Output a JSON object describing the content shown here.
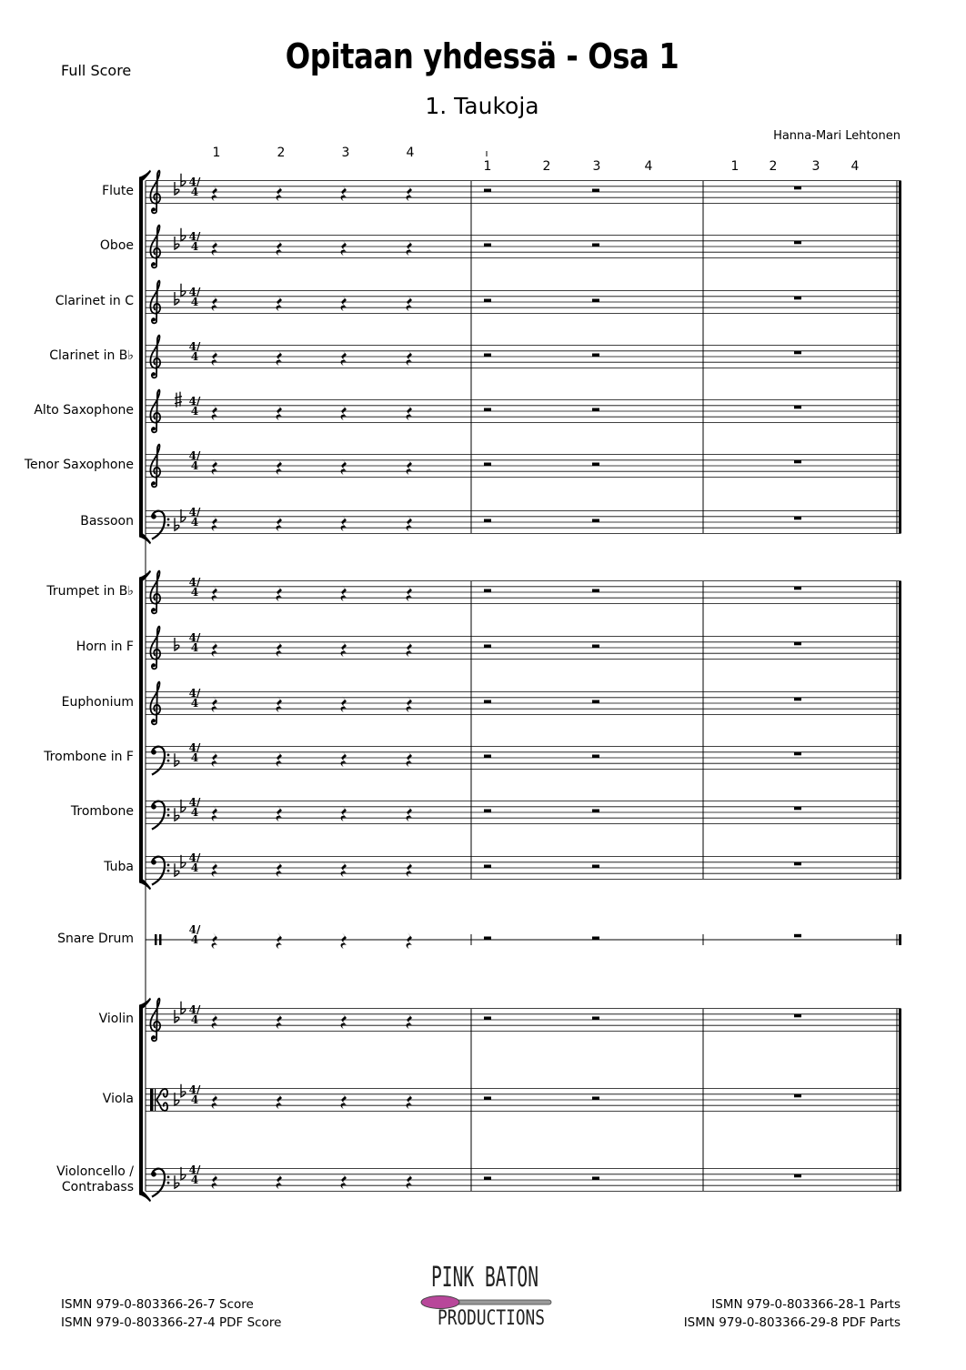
{
  "header": {
    "score_type": "Full Score",
    "title": "Opitaan yhdessä - Osa 1",
    "subtitle": "1. Taukoja",
    "composer": "Hanna-Mari Lehtonen"
  },
  "beat_counts": {
    "measure1": [
      "1",
      "2",
      "3",
      "4"
    ],
    "measure2": [
      "1",
      "2",
      "3",
      "4"
    ],
    "measure3": [
      "1",
      "2",
      "3",
      "4"
    ]
  },
  "time_signature": "4/4",
  "instruments": [
    {
      "name": "Flute",
      "clef": "treble",
      "key": "2 flats",
      "group": "woodwinds"
    },
    {
      "name": "Oboe",
      "clef": "treble",
      "key": "2 flats",
      "group": "woodwinds"
    },
    {
      "name": "Clarinet in C",
      "clef": "treble",
      "key": "2 flats",
      "group": "woodwinds"
    },
    {
      "name": "Clarinet in B♭",
      "clef": "treble",
      "key": "none",
      "group": "woodwinds"
    },
    {
      "name": "Alto Saxophone",
      "clef": "treble",
      "key": "1 sharp",
      "group": "woodwinds"
    },
    {
      "name": "Tenor Saxophone",
      "clef": "treble",
      "key": "none",
      "group": "woodwinds"
    },
    {
      "name": "Bassoon",
      "clef": "bass",
      "key": "2 flats",
      "group": "woodwinds"
    },
    {
      "name": "Trumpet in B♭",
      "clef": "treble",
      "key": "none",
      "group": "brass"
    },
    {
      "name": "Horn in F",
      "clef": "treble",
      "key": "1 flat",
      "group": "brass"
    },
    {
      "name": "Euphonium",
      "clef": "treble",
      "key": "none",
      "group": "brass"
    },
    {
      "name": "Trombone in F",
      "clef": "bass",
      "key": "1 flat",
      "group": "brass"
    },
    {
      "name": "Trombone",
      "clef": "bass",
      "key": "2 flats",
      "group": "brass"
    },
    {
      "name": "Tuba",
      "clef": "bass",
      "key": "2 flats",
      "group": "brass"
    },
    {
      "name": "Snare Drum",
      "clef": "percussion",
      "key": "none",
      "group": "percussion"
    },
    {
      "name": "Violin",
      "clef": "treble",
      "key": "2 flats",
      "group": "strings"
    },
    {
      "name": "Viola",
      "clef": "alto",
      "key": "2 flats",
      "group": "strings"
    },
    {
      "name": "Violoncello / Contrabass",
      "clef": "bass",
      "key": "2 flats",
      "group": "strings"
    }
  ],
  "measures": [
    {
      "rests": [
        "quarter",
        "quarter",
        "quarter",
        "quarter"
      ]
    },
    {
      "rests": [
        "half",
        "half"
      ]
    },
    {
      "rests": [
        "whole"
      ]
    }
  ],
  "footer": {
    "left": [
      "ISMN 979-0-803366-26-7 Score",
      "ISMN 979-0-803366-27-4 PDF Score"
    ],
    "right": [
      "ISMN 979-0-803366-28-1 Parts",
      "ISMN 979-0-803366-29-8 PDF Parts"
    ],
    "logo_top": "PINK BATON",
    "logo_bottom": "PRODUCTIONS",
    "logo_accent": "#b8479a"
  }
}
